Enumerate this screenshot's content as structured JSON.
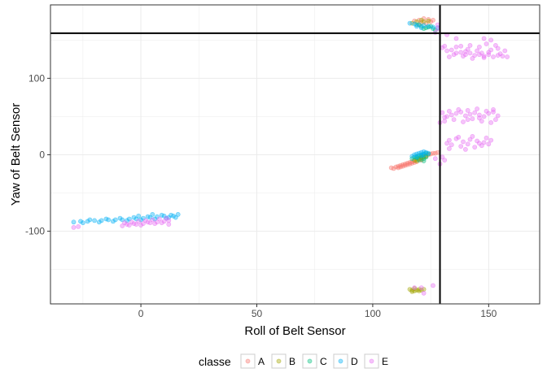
{
  "chart_data": {
    "type": "scatter",
    "title": "",
    "xlabel": "Roll of Belt Sensor",
    "ylabel": "Yaw of Belt Sensor",
    "xlim": [
      -39,
      172
    ],
    "ylim": [
      -195,
      196
    ],
    "x_ticks": [
      0,
      50,
      100,
      150
    ],
    "y_ticks": [
      -100,
      0,
      100
    ],
    "x_tick_labels": [
      "0",
      "50",
      "100",
      "150"
    ],
    "y_tick_labels": [
      "-100",
      "0",
      "100"
    ],
    "grid": true,
    "legend": {
      "title": "classe",
      "position": "bottom",
      "labels": [
        "A",
        "B",
        "C",
        "D",
        "E"
      ]
    },
    "reference_lines": {
      "vertical_x": 129,
      "horizontal_y": 159
    },
    "colors": {
      "A": "#F8766D",
      "B": "#A3A500",
      "C": "#00BF7D",
      "D": "#00B0F6",
      "E": "#E76BF3",
      "line": "#000000",
      "grid": "#ebebeb",
      "border": "#333333"
    },
    "point_alpha": 0.4,
    "series": [
      {
        "name": "A",
        "points": [
          [
            108,
            -17
          ],
          [
            110,
            -16
          ],
          [
            111,
            -15
          ],
          [
            112,
            -14
          ],
          [
            113,
            -13
          ],
          [
            114,
            -12
          ],
          [
            115,
            -11
          ],
          [
            116,
            -10
          ],
          [
            117,
            -9
          ],
          [
            118,
            -8
          ],
          [
            112,
            -16
          ],
          [
            114,
            -14
          ],
          [
            116,
            -12
          ],
          [
            118,
            -10
          ],
          [
            120,
            -6
          ],
          [
            121,
            -4
          ],
          [
            122,
            -2
          ],
          [
            123,
            -1
          ],
          [
            121,
            -7
          ],
          [
            119,
            -9
          ],
          [
            109,
            -18
          ],
          [
            111,
            -17
          ],
          [
            113,
            -15
          ],
          [
            115,
            -13
          ],
          [
            117,
            -11
          ],
          [
            124,
            0
          ],
          [
            125,
            1
          ],
          [
            126,
            2
          ],
          [
            127,
            2
          ],
          [
            128,
            3
          ],
          [
            118,
            175
          ],
          [
            120,
            176
          ],
          [
            122,
            178
          ],
          [
            124,
            177
          ],
          [
            126,
            176
          ],
          [
            125,
            174
          ],
          [
            121,
            173
          ],
          [
            123,
            172
          ]
        ]
      },
      {
        "name": "B",
        "points": [
          [
            116,
            -176
          ],
          [
            117,
            -177
          ],
          [
            118,
            -178
          ],
          [
            119,
            -177
          ],
          [
            120,
            -178
          ],
          [
            121,
            -177
          ],
          [
            122,
            -176
          ],
          [
            118,
            -175
          ],
          [
            120,
            -176
          ],
          [
            117,
            -179
          ],
          [
            118,
            -7
          ],
          [
            119,
            -6
          ],
          [
            120,
            -5
          ],
          [
            121,
            -4
          ],
          [
            122,
            -3
          ],
          [
            119,
            -8
          ],
          [
            121,
            -6
          ],
          [
            123,
            -2
          ],
          [
            117,
            172
          ],
          [
            119,
            174
          ],
          [
            121,
            176
          ],
          [
            122,
            174
          ],
          [
            124,
            175
          ],
          [
            120,
            170
          ]
        ]
      },
      {
        "name": "C",
        "points": [
          [
            117,
            -5
          ],
          [
            118,
            -3
          ],
          [
            119,
            -2
          ],
          [
            120,
            -1
          ],
          [
            121,
            0
          ],
          [
            122,
            1
          ],
          [
            123,
            2
          ],
          [
            124,
            1
          ],
          [
            119,
            -4
          ],
          [
            121,
            -2
          ],
          [
            120,
            -7
          ],
          [
            122,
            -5
          ],
          [
            123,
            -3
          ],
          [
            122,
            -8
          ],
          [
            119,
            170
          ],
          [
            121,
            168
          ],
          [
            123,
            166
          ],
          [
            124,
            167
          ],
          [
            126,
            165
          ],
          [
            127,
            163
          ],
          [
            122,
            165
          ],
          [
            125,
            168
          ]
        ]
      },
      {
        "name": "D",
        "points": [
          [
            -29,
            -88
          ],
          [
            -26,
            -87
          ],
          [
            -23,
            -87
          ],
          [
            -20,
            -86
          ],
          [
            -17,
            -86
          ],
          [
            -14,
            -85
          ],
          [
            -11,
            -85
          ],
          [
            -8,
            -85
          ],
          [
            -5,
            -84
          ],
          [
            -2,
            -84
          ],
          [
            1,
            -83
          ],
          [
            4,
            -82
          ],
          [
            7,
            -81
          ],
          [
            10,
            -80
          ],
          [
            13,
            -79
          ],
          [
            16,
            -78
          ],
          [
            15,
            -82
          ],
          [
            11,
            -83
          ],
          [
            14,
            -80
          ],
          [
            -25,
            -89
          ],
          [
            -18,
            -88
          ],
          [
            -12,
            -87
          ],
          [
            -6,
            -86
          ],
          [
            0,
            -85
          ],
          [
            6,
            -84
          ],
          [
            12,
            -82
          ],
          [
            -22,
            -85
          ],
          [
            -15,
            -84
          ],
          [
            -9,
            -83
          ],
          [
            -3,
            -82
          ],
          [
            3,
            -81
          ],
          [
            9,
            -79
          ],
          [
            5,
            -78
          ],
          [
            -1,
            -80
          ],
          [
            117,
            -2
          ],
          [
            118,
            0
          ],
          [
            119,
            1
          ],
          [
            120,
            2
          ],
          [
            121,
            3
          ],
          [
            122,
            4
          ],
          [
            123,
            3
          ],
          [
            121,
            -1
          ],
          [
            119,
            -3
          ],
          [
            122,
            0
          ],
          [
            124,
            2
          ],
          [
            116,
            172
          ],
          [
            118,
            171
          ],
          [
            120,
            170
          ],
          [
            122,
            169
          ],
          [
            124,
            168
          ],
          [
            126,
            167
          ],
          [
            128,
            166
          ],
          [
            121,
            166
          ],
          [
            119,
            168
          ]
        ]
      },
      {
        "name": "E",
        "points": [
          [
            -29,
            -95
          ],
          [
            -27,
            -94
          ],
          [
            -8,
            -93
          ],
          [
            -5,
            -92
          ],
          [
            -2,
            -91
          ],
          [
            1,
            -90
          ],
          [
            4,
            -89
          ],
          [
            7,
            -88
          ],
          [
            10,
            -87
          ],
          [
            12,
            -86
          ],
          [
            -7,
            -89
          ],
          [
            -4,
            -88
          ],
          [
            -1,
            -87
          ],
          [
            2,
            -86
          ],
          [
            5,
            -85
          ],
          [
            8,
            -84
          ],
          [
            11,
            -83
          ],
          [
            -6,
            -91
          ],
          [
            0,
            -92
          ],
          [
            6,
            -90
          ],
          [
            3,
            -88
          ],
          [
            9,
            -89
          ],
          [
            -3,
            -90
          ],
          [
            12,
            -91
          ],
          [
            129,
            -12
          ],
          [
            131,
            -7
          ],
          [
            127,
            -5
          ],
          [
            130,
            -3
          ],
          [
            118,
            -174
          ],
          [
            121,
            -174
          ],
          [
            126,
            -171
          ],
          [
            122,
            -181
          ],
          [
            128,
            170
          ],
          [
            128,
            165
          ],
          [
            127,
            160
          ],
          [
            130,
            140
          ],
          [
            132,
            136
          ],
          [
            134,
            137
          ],
          [
            136,
            133
          ],
          [
            138,
            134
          ],
          [
            140,
            131
          ],
          [
            142,
            133
          ],
          [
            144,
            130
          ],
          [
            146,
            131
          ],
          [
            148,
            129
          ],
          [
            150,
            131
          ],
          [
            152,
            128
          ],
          [
            154,
            130
          ],
          [
            156,
            129
          ],
          [
            158,
            128
          ],
          [
            133,
            128
          ],
          [
            136,
            141
          ],
          [
            141,
            138
          ],
          [
            146,
            141
          ],
          [
            151,
            137
          ],
          [
            143,
            126
          ],
          [
            138,
            142
          ],
          [
            148,
            127
          ],
          [
            153,
            143
          ],
          [
            157,
            136
          ],
          [
            135,
            131
          ],
          [
            140,
            135
          ],
          [
            145,
            136
          ],
          [
            150,
            134
          ],
          [
            155,
            132
          ],
          [
            148,
            152
          ],
          [
            151,
            150
          ],
          [
            131,
            142
          ],
          [
            139,
            129
          ],
          [
            147,
            133
          ],
          [
            154,
            139
          ],
          [
            132,
            157
          ],
          [
            136,
            152
          ],
          [
            142,
            143
          ],
          [
            149,
            145
          ],
          [
            130,
            55
          ],
          [
            132,
            50
          ],
          [
            134,
            52
          ],
          [
            136,
            54
          ],
          [
            138,
            56
          ],
          [
            140,
            51
          ],
          [
            142,
            53
          ],
          [
            144,
            55
          ],
          [
            146,
            52
          ],
          [
            148,
            50
          ],
          [
            150,
            54
          ],
          [
            152,
            56
          ],
          [
            154,
            51
          ],
          [
            131,
            44
          ],
          [
            135,
            46
          ],
          [
            139,
            43
          ],
          [
            143,
            47
          ],
          [
            147,
            44
          ],
          [
            151,
            42
          ],
          [
            153,
            46
          ],
          [
            133,
            57
          ],
          [
            137,
            59
          ],
          [
            141,
            58
          ],
          [
            145,
            60
          ],
          [
            149,
            57
          ],
          [
            152,
            59
          ],
          [
            131,
            49
          ],
          [
            141,
            46
          ],
          [
            146,
            48
          ],
          [
            129,
            42
          ],
          [
            133,
            19
          ],
          [
            136,
            21
          ],
          [
            139,
            17
          ],
          [
            142,
            20
          ],
          [
            145,
            18
          ],
          [
            148,
            16
          ],
          [
            151,
            19
          ],
          [
            134,
            13
          ],
          [
            138,
            11
          ],
          [
            141,
            14
          ],
          [
            144,
            10
          ],
          [
            147,
            12
          ],
          [
            133,
            8
          ],
          [
            140,
            7
          ],
          [
            137,
            23
          ],
          [
            143,
            24
          ],
          [
            149,
            22
          ],
          [
            132,
            15
          ],
          [
            146,
            15
          ],
          [
            150,
            14
          ]
        ]
      }
    ]
  }
}
